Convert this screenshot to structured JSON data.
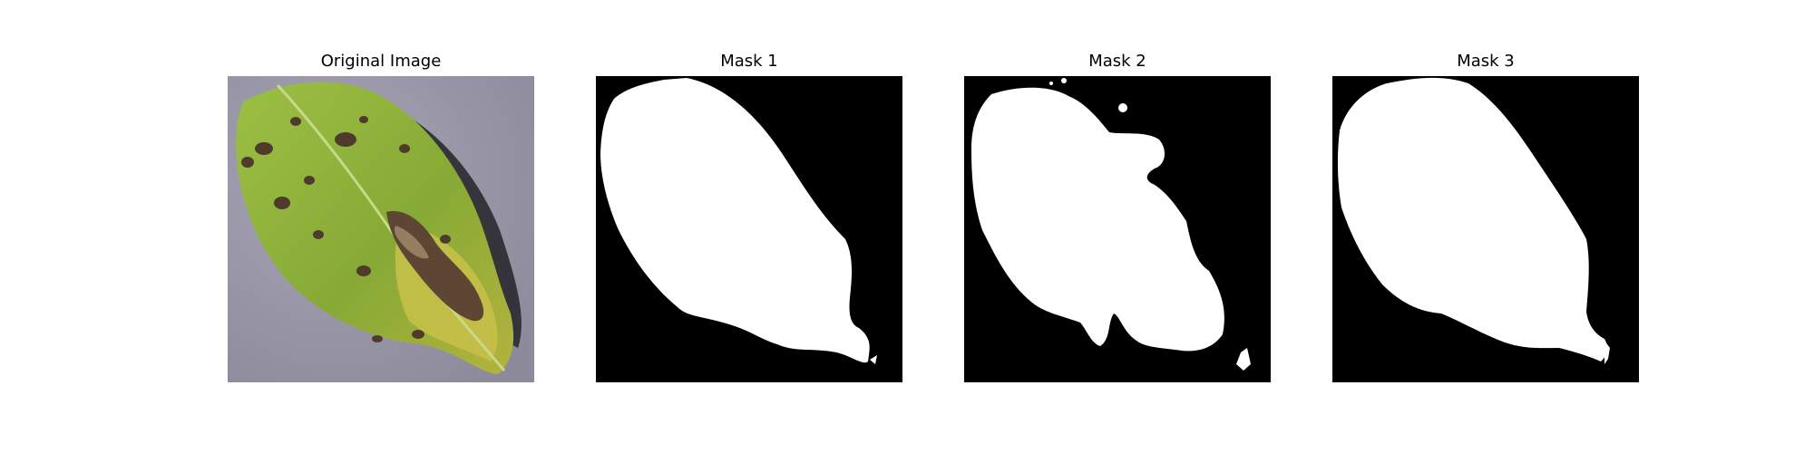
{
  "figure": {
    "panels": [
      {
        "title": "Original Image",
        "content": "leaf-photo"
      },
      {
        "title": "Mask 1",
        "content": "binary-mask"
      },
      {
        "title": "Mask 2",
        "content": "binary-mask"
      },
      {
        "title": "Mask 3",
        "content": "binary-mask"
      }
    ]
  },
  "colors": {
    "background": "#ffffff",
    "mask_foreground": "#ffffff",
    "mask_background": "#000000",
    "leaf_green": "#8fb33a",
    "leaf_yellow": "#c9c24a",
    "lesion_brown": "#5a4634",
    "surface_grey": "#9a98a8",
    "shadow": "#2a2a2e"
  }
}
